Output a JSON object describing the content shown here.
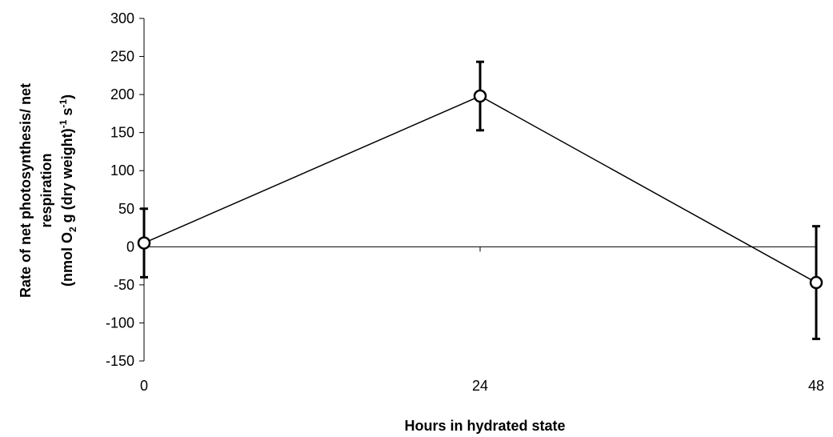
{
  "chart_data": {
    "type": "line",
    "title": "",
    "xlabel": "Hours in hydrated state",
    "ylabel_lines": [
      "Rate of net photosynthesis/ net",
      "respiration"
    ],
    "ylabel_unit": {
      "open": "(nmol O",
      "sub": "2",
      "mid": " g (dry weight)",
      "sup1": "-1",
      "mid2": " s",
      "sup2": "-1",
      "close": ")"
    },
    "x": [
      0,
      24,
      48
    ],
    "x_tick_labels": [
      "0",
      "24",
      "48"
    ],
    "xlim": [
      0,
      48
    ],
    "ylim": [
      -150,
      300
    ],
    "y_ticks": [
      300,
      250,
      200,
      150,
      100,
      50,
      0,
      -50,
      -100,
      -150
    ],
    "grid": false,
    "series": [
      {
        "values": [
          5,
          198,
          -47
        ],
        "error": [
          45,
          45,
          74
        ],
        "marker": "open-circle",
        "color": "#000000"
      }
    ]
  }
}
